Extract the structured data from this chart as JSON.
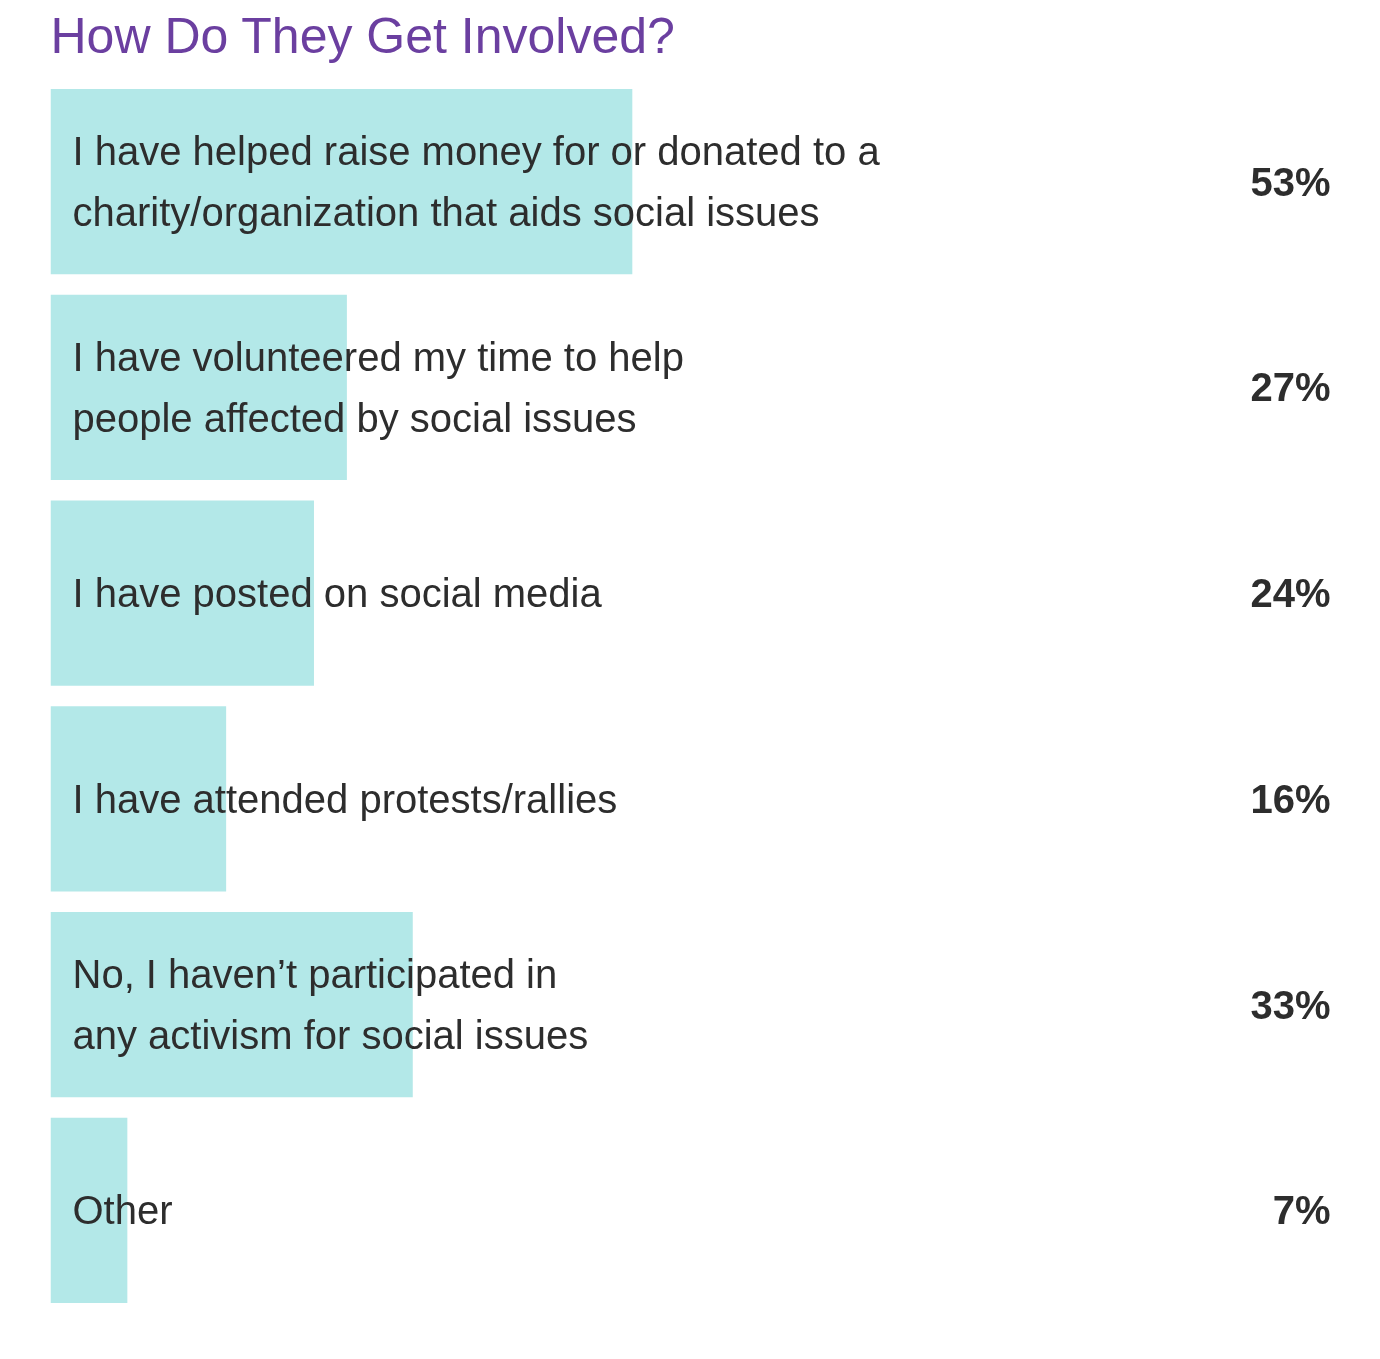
{
  "chart_data": {
    "type": "bar",
    "orientation": "horizontal",
    "title": "How Do They Get Involved?",
    "categories": [
      "I have helped raise money for or donated to a\ncharity/organization that aids social issues",
      "I have volunteered my time to help\npeople affected by social issues",
      "I have posted on social media",
      "I have attended protests/rallies",
      "No, I haven’t participated in\nany activism for social issues",
      "Other"
    ],
    "values": [
      53,
      27,
      24,
      16,
      33,
      7
    ],
    "color": "#b3e8e8",
    "value_labels": [
      "53%",
      "27%",
      "24%",
      "16%",
      "33%",
      "7%"
    ]
  }
}
